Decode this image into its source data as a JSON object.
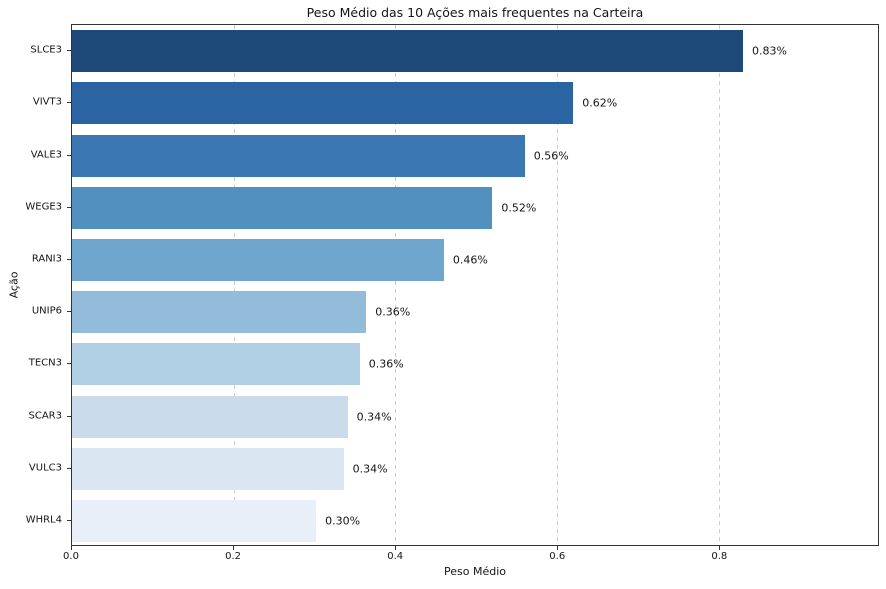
{
  "chart_data": {
    "type": "bar",
    "orientation": "horizontal",
    "title": "Peso Médio das 10 Ações mais frequentes na Carteira",
    "xlabel": "Peso Médio",
    "ylabel": "Ação",
    "categories": [
      "SLCE3",
      "VIVT3",
      "VALE3",
      "WEGE3",
      "RANI3",
      "UNIP6",
      "TECN3",
      "SCAR3",
      "VULC3",
      "WHRL4"
    ],
    "values": [
      0.83,
      0.62,
      0.56,
      0.52,
      0.46,
      0.364,
      0.356,
      0.341,
      0.336,
      0.302
    ],
    "value_labels": [
      "0.83%",
      "0.62%",
      "0.56%",
      "0.52%",
      "0.46%",
      "0.36%",
      "0.36%",
      "0.34%",
      "0.34%",
      "0.30%"
    ],
    "bar_colors": [
      "#1c4977",
      "#2b64a2",
      "#3b77b2",
      "#5290c0",
      "#6fa6ce",
      "#92bcda",
      "#b0cee4",
      "#cadcec",
      "#dae6f2",
      "#e8eff8"
    ],
    "xlim": [
      0,
      0.997
    ],
    "x_ticks": [
      0.0,
      0.2,
      0.4,
      0.6,
      0.8
    ],
    "x_tick_labels": [
      "0.0",
      "0.2",
      "0.4",
      "0.6",
      "0.8"
    ],
    "grid": "vertical-dashed",
    "gridline_color": "#cdcdcd",
    "legend": "none",
    "background_color": "#ffffff",
    "spine_color": "#333333"
  }
}
